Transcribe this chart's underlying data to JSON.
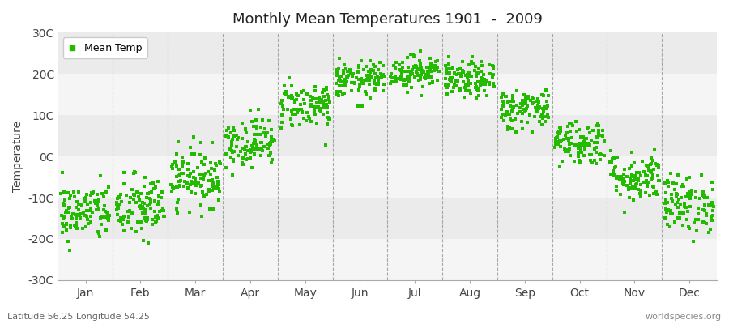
{
  "title": "Monthly Mean Temperatures 1901  -  2009",
  "ylabel": "Temperature",
  "ylim": [
    -30,
    30
  ],
  "yticks": [
    -30,
    -20,
    -10,
    0,
    10,
    20,
    30
  ],
  "ytick_labels": [
    "-30C",
    "-20C",
    "-10C",
    "0C",
    "10C",
    "20C",
    "30C"
  ],
  "months": [
    "Jan",
    "Feb",
    "Mar",
    "Apr",
    "May",
    "Jun",
    "Jul",
    "Aug",
    "Sep",
    "Oct",
    "Nov",
    "Dec"
  ],
  "monthly_means": [
    -13.5,
    -12.5,
    -5.0,
    3.5,
    12.5,
    18.5,
    20.5,
    18.5,
    11.5,
    3.5,
    -5.0,
    -11.5
  ],
  "monthly_stds": [
    3.5,
    4.0,
    3.5,
    3.0,
    2.8,
    2.2,
    2.0,
    2.2,
    2.5,
    2.8,
    3.0,
    3.5
  ],
  "n_years": 109,
  "dot_color": "#22bb00",
  "dot_size": 5,
  "legend_label": "Mean Temp",
  "bg_band_colors": [
    "#f5f5f5",
    "#ebebeb"
  ],
  "vline_color": "#888888",
  "subtitle_left": "Latitude 56.25 Longitude 54.25",
  "subtitle_right": "worldspecies.org",
  "fig_bg": "#ffffff",
  "seed": 42
}
